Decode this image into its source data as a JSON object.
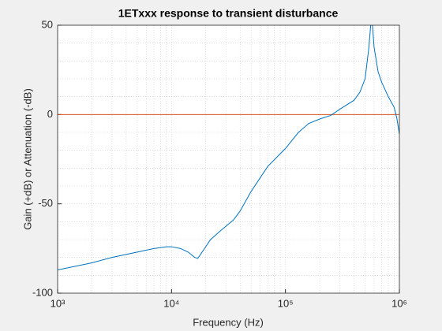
{
  "chart_data": {
    "type": "line",
    "title": "1ETxxx response to transient disturbance",
    "x_label": "Frequency (Hz)",
    "y_label": "Gain (+dB) or Attenuation (-dB)",
    "x_scale": "log",
    "grid": true,
    "minor_grid": true,
    "xlim": [
      1000,
      1000000
    ],
    "xticks": [
      {
        "value": 1000,
        "label": "10³"
      },
      {
        "value": 10000,
        "label": "10⁴"
      },
      {
        "value": 100000,
        "label": "10⁵"
      },
      {
        "value": 1000000,
        "label": "10⁶"
      }
    ],
    "ylim": [
      -100,
      50
    ],
    "yticks": [
      -100,
      -50,
      0,
      50
    ],
    "x": [
      1000,
      2000,
      3000,
      5000,
      7000,
      9000,
      10000,
      12000,
      14000,
      16000,
      17000,
      19000,
      22000,
      27000,
      35000,
      40000,
      50000,
      70000,
      100000,
      130000,
      160000,
      200000,
      250000,
      300000,
      400000,
      450000,
      500000,
      540000,
      560000,
      580000,
      600000,
      650000,
      700000,
      800000,
      900000,
      950000,
      1000000
    ],
    "series": [
      {
        "color": "#0072bd",
        "values": [
          -87,
          -83,
          -80,
          -77,
          -75,
          -74,
          -74,
          -75,
          -77,
          -80,
          -80.5,
          -76,
          -70,
          -65,
          -59,
          -54,
          -43,
          -29,
          -19,
          -10,
          -5,
          -2.5,
          -0.5,
          3,
          8,
          12.5,
          20,
          37.6,
          50,
          50,
          37.6,
          24,
          18,
          10,
          4,
          -2,
          -11
        ]
      }
    ],
    "reference_line": {
      "y": 0,
      "color": "#d95319"
    }
  }
}
